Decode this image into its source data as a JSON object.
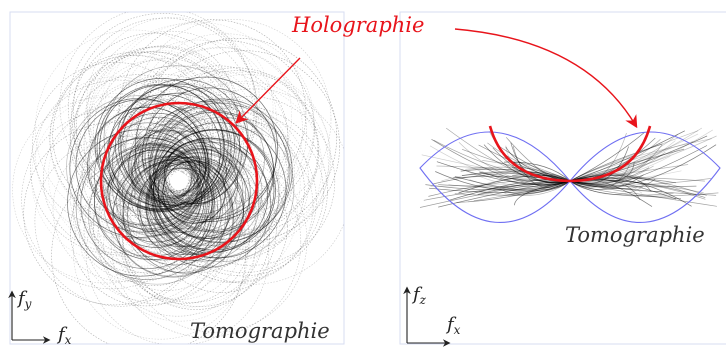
{
  "annotations": {
    "holography": "Holographie",
    "tomography_left": "Tomographie",
    "tomography_right": "Tomographie"
  },
  "axes": {
    "left": {
      "vertical": "f",
      "vertical_sub": "y",
      "horizontal": "f",
      "horizontal_sub": "x"
    },
    "right": {
      "vertical": "f",
      "vertical_sub": "z",
      "horizontal": "f",
      "horizontal_sub": "x"
    }
  },
  "colors": {
    "holography": "#e8141b",
    "tomography": "#000000",
    "boundary": "#6f6ff2",
    "panel_border": "#d7dcf2"
  }
}
